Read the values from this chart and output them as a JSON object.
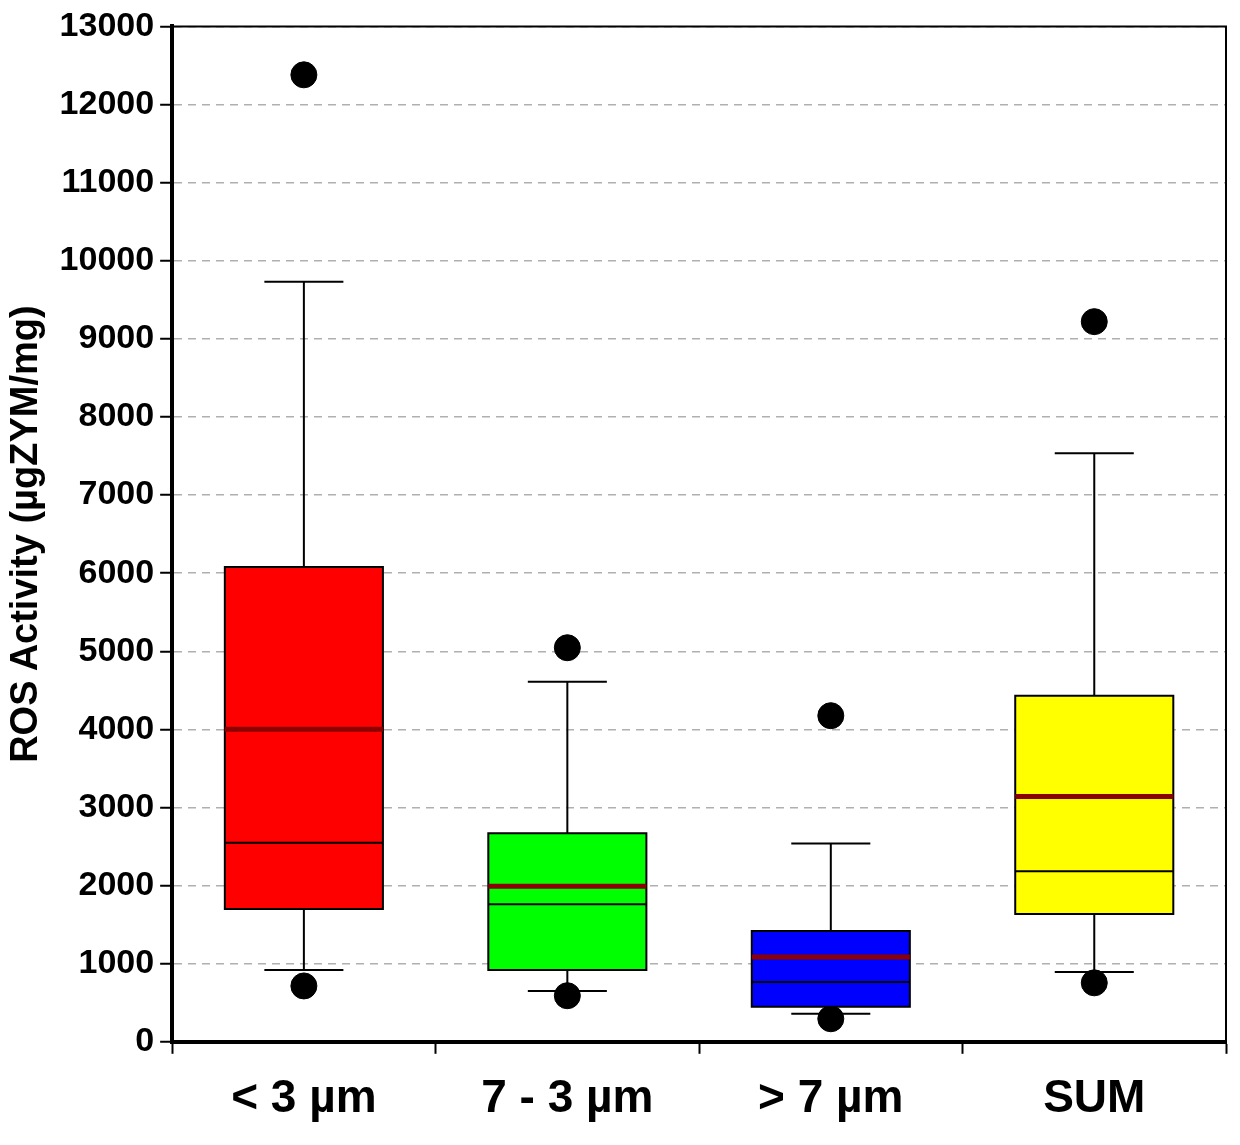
{
  "chart_data": {
    "type": "box",
    "ylabel": "ROS Activity (µgZYM/mg)",
    "categories": [
      "< 3 µm",
      "7 - 3 µm",
      "> 7 µm",
      "SUM"
    ],
    "colors": [
      "#ff0000",
      "#00ff00",
      "#0000ff",
      "#ffff00"
    ],
    "boxes": [
      {
        "low": 920,
        "q1": 1700,
        "median": 2550,
        "q3": 6080,
        "high": 9730,
        "mean": 4000,
        "outliers": [
          12380,
          715
        ]
      },
      {
        "low": 650,
        "q1": 920,
        "median": 1760,
        "q3": 2670,
        "high": 4610,
        "mean": 1990,
        "outliers": [
          5045,
          590
        ]
      },
      {
        "low": 360,
        "q1": 450,
        "median": 765,
        "q3": 1420,
        "high": 2540,
        "mean": 1085,
        "outliers": [
          4175,
          295
        ]
      },
      {
        "low": 895,
        "q1": 1635,
        "median": 2185,
        "q3": 4430,
        "high": 7535,
        "mean": 3140,
        "outliers": [
          9220,
          755
        ]
      }
    ],
    "ylim": [
      0,
      13000
    ],
    "yticks": [
      0,
      1000,
      2000,
      3000,
      4000,
      5000,
      6000,
      7000,
      8000,
      9000,
      10000,
      11000,
      12000,
      13000
    ],
    "grid": "y",
    "legend": false,
    "marker": "circle"
  }
}
